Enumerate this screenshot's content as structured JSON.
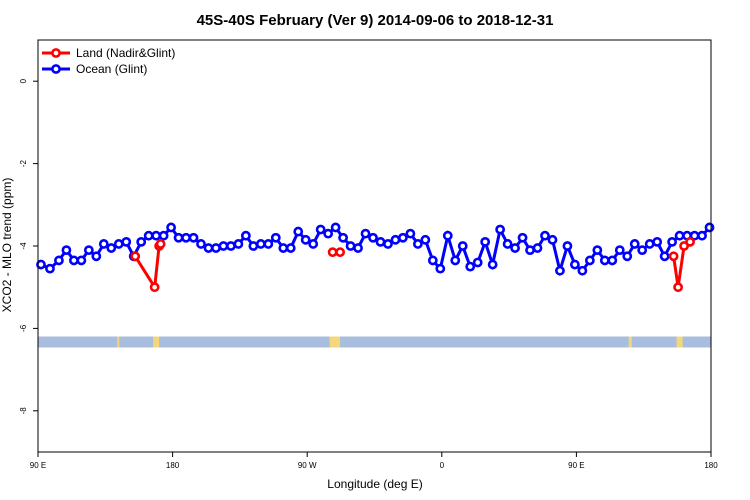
{
  "chart_data": {
    "type": "line",
    "title": "45S-40S February (Ver 9)   2014-09-06 to 2018-12-31",
    "xlabel": "Longitude (deg E)",
    "ylabel": "XCO2 - MLO trend (ppm)",
    "xlim": [
      90,
      540
    ],
    "ylim": [
      -9,
      1
    ],
    "x_ticks": [
      {
        "value": 90,
        "label": "90 E"
      },
      {
        "value": 180,
        "label": "180"
      },
      {
        "value": 270,
        "label": "90 W"
      },
      {
        "value": 360,
        "label": "0"
      },
      {
        "value": 450,
        "label": "90 E"
      },
      {
        "value": 540,
        "label": "180"
      }
    ],
    "y_ticks": [
      {
        "value": 0,
        "label": "0"
      },
      {
        "value": -2,
        "label": "-2"
      },
      {
        "value": -4,
        "label": "-4"
      },
      {
        "value": -6,
        "label": "-6"
      },
      {
        "value": -8,
        "label": "-8"
      }
    ],
    "grid": false,
    "legend_position": "top-left",
    "series": [
      {
        "name": "Land (Nadir&Glint)",
        "color": "#ff0000",
        "segments": [
          {
            "x": [
              155,
              168,
              171
            ],
            "y": [
              -4.25,
              -5.0,
              -4.0
            ]
          },
          {
            "x": [
              172
            ],
            "y": [
              -3.95
            ]
          },
          {
            "x": [
              287,
              292
            ],
            "y": [
              -4.15,
              -4.15
            ]
          },
          {
            "x": [
              515,
              518,
              522
            ],
            "y": [
              -4.25,
              -5.0,
              -4.0
            ]
          },
          {
            "x": [
              526
            ],
            "y": [
              -3.9
            ]
          }
        ]
      },
      {
        "name": "Ocean (Glint)",
        "color": "#0000ff",
        "segments": [
          {
            "x": [
              92,
              98,
              104,
              109,
              114,
              119,
              124,
              129,
              134,
              139,
              144,
              149,
              154,
              159,
              164,
              169,
              174,
              179,
              184,
              189,
              194,
              199,
              204,
              209,
              214,
              219,
              224,
              229,
              234,
              239,
              244,
              249,
              254,
              259,
              264,
              269,
              274,
              279,
              284,
              289,
              294,
              299,
              304,
              309,
              314,
              319,
              324,
              329,
              334,
              339,
              344,
              349,
              354,
              359,
              364,
              369,
              374,
              379,
              384,
              389,
              394,
              399,
              404,
              409,
              414,
              419,
              424,
              429,
              434,
              439,
              444,
              449,
              454,
              459,
              464,
              469,
              474,
              479,
              484,
              489,
              494,
              499,
              504,
              509,
              514,
              519,
              524,
              529,
              534,
              539
            ],
            "y": [
              -4.45,
              -4.55,
              -4.35,
              -4.1,
              -4.35,
              -4.35,
              -4.1,
              -4.25,
              -3.95,
              -4.05,
              -3.95,
              -3.9,
              -4.25,
              -3.9,
              -3.75,
              -3.75,
              -3.75,
              -3.55,
              -3.8,
              -3.8,
              -3.8,
              -3.95,
              -4.05,
              -4.05,
              -4.0,
              -4.0,
              -3.95,
              -3.75,
              -4.0,
              -3.95,
              -3.95,
              -3.8,
              -4.05,
              -4.05,
              -3.65,
              -3.85,
              -3.95,
              -3.6,
              -3.7,
              -3.55,
              -3.8,
              -4.0,
              -4.05,
              -3.7,
              -3.8,
              -3.9,
              -3.95,
              -3.85,
              -3.8,
              -3.7,
              -3.95,
              -3.85,
              -4.35,
              -4.55,
              -3.75,
              -4.35,
              -4.0,
              -4.5,
              -4.4,
              -3.9,
              -4.45,
              -3.6,
              -3.95,
              -4.05,
              -3.8,
              -4.1,
              -4.05,
              -3.75,
              -3.85,
              -4.6,
              -4.0,
              -4.45,
              -4.6,
              -4.35,
              -4.1,
              -4.35,
              -4.35,
              -4.1,
              -4.25,
              -3.95,
              -4.1,
              -3.95,
              -3.9,
              -4.25,
              -3.9,
              -3.75,
              -3.75,
              -3.75,
              -3.75,
              -3.55
            ]
          }
        ]
      }
    ],
    "land_strip": {
      "y": -6.33,
      "band_color": "#a9bddf",
      "land_color": "#f5d77b",
      "land_longitudes": [
        [
          143,
          144
        ],
        [
          167,
          171
        ],
        [
          285,
          292
        ],
        [
          485,
          487
        ],
        [
          517,
          521
        ]
      ]
    }
  }
}
